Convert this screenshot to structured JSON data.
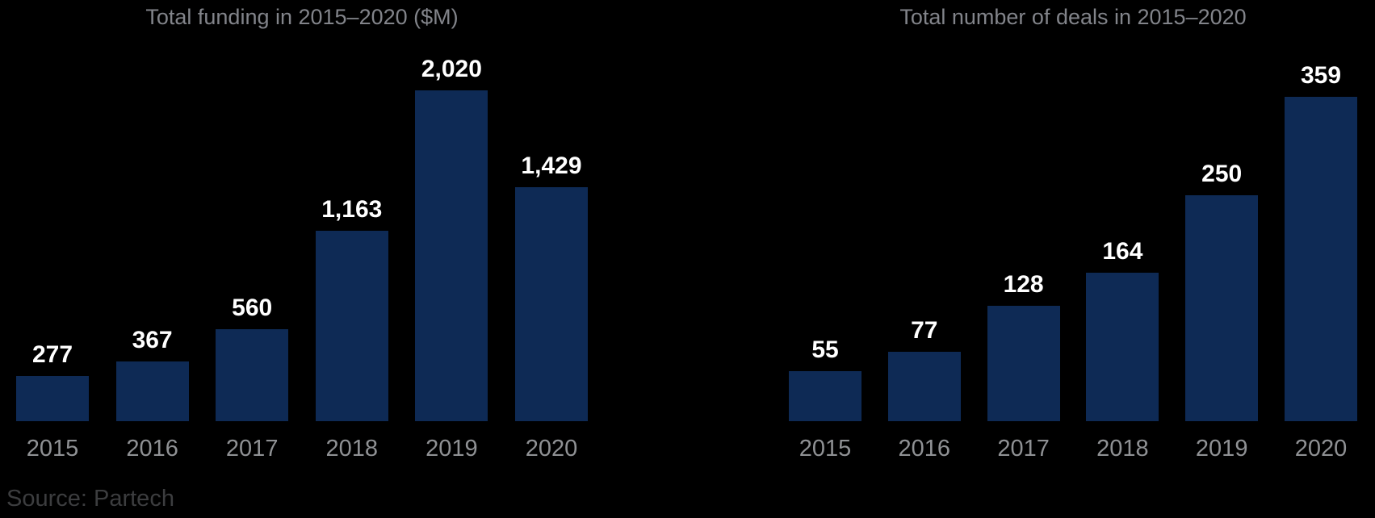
{
  "page": {
    "background": "#000000",
    "source_note": "Source: Partech"
  },
  "colors": {
    "background": "#000000",
    "bar": "#0e2a55",
    "title": "#82848a",
    "axis_label": "#8f9194",
    "value_label": "#ffffff",
    "source": "#3c3d3f"
  },
  "chart_data": [
    {
      "type": "bar",
      "title": "Total funding in 2015–2020 ($M)",
      "categories": [
        "2015",
        "2016",
        "2017",
        "2018",
        "2019",
        "2020"
      ],
      "values": [
        277,
        367,
        560,
        1163,
        2020,
        1429
      ],
      "value_labels": [
        "277",
        "367",
        "560",
        "1,163",
        "2,020",
        "1,429"
      ],
      "xlabel": "",
      "ylabel": "",
      "ylim": [
        0,
        2020
      ],
      "grid": false,
      "legend": false,
      "axes_hidden": true,
      "background": "#000000"
    },
    {
      "type": "bar",
      "title": "Total number of deals in 2015–2020",
      "categories": [
        "2015",
        "2016",
        "2017",
        "2018",
        "2019",
        "2020"
      ],
      "values": [
        55,
        77,
        128,
        164,
        250,
        359
      ],
      "value_labels": [
        "55",
        "77",
        "128",
        "164",
        "250",
        "359"
      ],
      "xlabel": "",
      "ylabel": "",
      "ylim": [
        0,
        359
      ],
      "grid": false,
      "legend": false,
      "axes_hidden": true,
      "background": "#000000"
    }
  ]
}
